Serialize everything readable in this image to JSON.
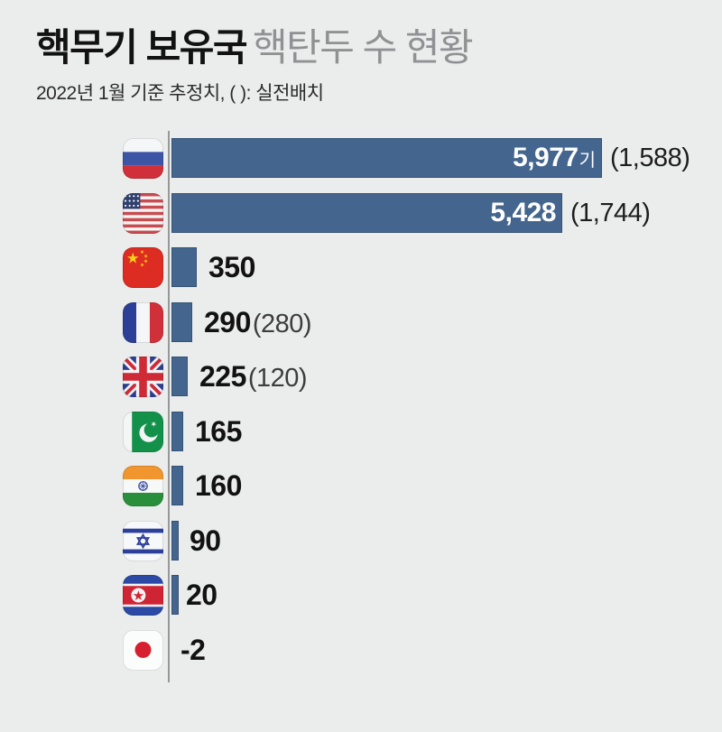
{
  "header": {
    "title_bold": "핵무기 보유국",
    "title_rest": "핵탄두 수 현황",
    "subtitle": "2022년 1월 기준 추정치, ( ): 실전배치"
  },
  "colors": {
    "background": "#ebedec",
    "bar": "#44658d",
    "axis": "#96989a",
    "title_black": "#121212",
    "title_gray": "#8f9193",
    "inside_label": "#ffffff"
  },
  "chart_data": {
    "type": "bar",
    "orientation": "horizontal",
    "title": "핵무기 보유국 핵탄두 수 현황",
    "subtitle": "2022년 1월 기준 추정치, ( ): 실전배치",
    "note": "( ): 실전배치",
    "unit": "기",
    "xlim": [
      0,
      5977
    ],
    "grid": false,
    "legend": false,
    "bars": [
      {
        "country": "Russia",
        "flag": "russia",
        "total": 5977,
        "total_label": "5,977",
        "suffix": "기",
        "deployed": 1588,
        "deployed_label": "(1,588)",
        "label_inside": true
      },
      {
        "country": "United States",
        "flag": "usa",
        "total": 5428,
        "total_label": "5,428",
        "deployed": 1744,
        "deployed_label": "(1,744)",
        "label_inside": true
      },
      {
        "country": "China",
        "flag": "china",
        "total": 350,
        "total_label": "350"
      },
      {
        "country": "France",
        "flag": "france",
        "total": 290,
        "total_label": "290",
        "deployed": 280,
        "deployed_label": "(280)"
      },
      {
        "country": "United Kingdom",
        "flag": "uk",
        "total": 225,
        "total_label": "225",
        "deployed": 120,
        "deployed_label": "(120)"
      },
      {
        "country": "Pakistan",
        "flag": "pakistan",
        "total": 165,
        "total_label": "165"
      },
      {
        "country": "India",
        "flag": "india",
        "total": 160,
        "total_label": "160"
      },
      {
        "country": "Israel",
        "flag": "israel",
        "total": 90,
        "total_label": "90"
      },
      {
        "country": "North Korea",
        "flag": "north-korea",
        "total": 20,
        "total_label": "20"
      },
      {
        "country": "Japan",
        "flag": "japan",
        "total": 0,
        "total_label": "-2"
      }
    ]
  }
}
